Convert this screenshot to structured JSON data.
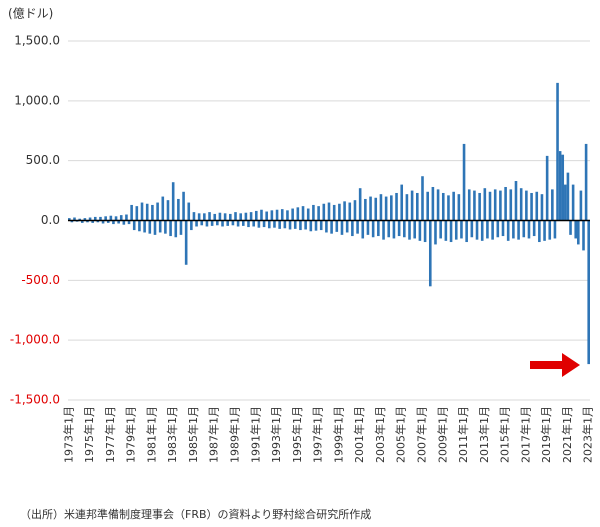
{
  "chart_data": {
    "type": "bar",
    "ylabel": "(億ドル)",
    "source": "（出所）米連邦準備制度理事会（FRB）の資料より野村総合研究所作成",
    "color": "#2e75b6",
    "tick_color": "#333333",
    "negative_tick_color": "#e00000",
    "grid": true,
    "ylim": [
      -1500,
      1500
    ],
    "yticks": [
      {
        "value": -1500,
        "label": "-1,500.0"
      },
      {
        "value": -1000,
        "label": "-1,000.0"
      },
      {
        "value": -500,
        "label": "-500.0"
      },
      {
        "value": 0,
        "label": "0.0"
      },
      {
        "value": 500,
        "label": "500.0"
      },
      {
        "value": 1000,
        "label": "1,000.0"
      },
      {
        "value": 1500,
        "label": "1,500.0"
      }
    ],
    "categories": [
      "1973年1月",
      null,
      null,
      null,
      null,
      null,
      null,
      null,
      "1975年1月",
      null,
      null,
      null,
      null,
      null,
      null,
      null,
      "1977年1月",
      null,
      null,
      null,
      null,
      null,
      null,
      null,
      "1979年1月",
      null,
      null,
      null,
      null,
      null,
      null,
      null,
      "1981年1月",
      null,
      null,
      null,
      null,
      null,
      null,
      null,
      "1983年1月",
      null,
      null,
      null,
      null,
      null,
      null,
      null,
      "1985年1月",
      null,
      null,
      null,
      null,
      null,
      null,
      null,
      "1987年1月",
      null,
      null,
      null,
      null,
      null,
      null,
      null,
      "1989年1月",
      null,
      null,
      null,
      null,
      null,
      null,
      null,
      "1991年1月",
      null,
      null,
      null,
      null,
      null,
      null,
      null,
      "1993年1月",
      null,
      null,
      null,
      null,
      null,
      null,
      null,
      "1995年1月",
      null,
      null,
      null,
      null,
      null,
      null,
      null,
      "1997年1月",
      null,
      null,
      null,
      null,
      null,
      null,
      null,
      "1999年1月",
      null,
      null,
      null,
      null,
      null,
      null,
      null,
      "2001年1月",
      null,
      null,
      null,
      null,
      null,
      null,
      null,
      "2003年1月",
      null,
      null,
      null,
      null,
      null,
      null,
      null,
      "2005年1月",
      null,
      null,
      null,
      null,
      null,
      null,
      null,
      "2007年1月",
      null,
      null,
      null,
      null,
      null,
      null,
      null,
      "2009年1月",
      null,
      null,
      null,
      null,
      null,
      null,
      null,
      "2011年1月",
      null,
      null,
      null,
      null,
      null,
      null,
      null,
      "2013年1月",
      null,
      null,
      null,
      null,
      null,
      null,
      null,
      "2015年1月",
      null,
      null,
      null,
      null,
      null,
      null,
      null,
      "2017年1月",
      null,
      null,
      null,
      null,
      null,
      null,
      null,
      "2019年1月",
      null,
      null,
      null,
      null,
      null,
      null,
      null,
      "2021年1月",
      null,
      null,
      null,
      null,
      null,
      null,
      null,
      "2023年1月"
    ],
    "values": [
      20,
      -15,
      25,
      -10,
      15,
      -20,
      20,
      -15,
      25,
      -20,
      30,
      -15,
      30,
      -25,
      35,
      -20,
      40,
      -30,
      35,
      -25,
      45,
      -35,
      50,
      -30,
      130,
      -80,
      120,
      -90,
      150,
      -100,
      140,
      -110,
      130,
      -120,
      150,
      -100,
      200,
      -110,
      170,
      -130,
      320,
      -140,
      180,
      -120,
      240,
      -370,
      150,
      -80,
      70,
      -50,
      60,
      -40,
      60,
      -50,
      70,
      -45,
      55,
      -40,
      65,
      -50,
      60,
      -45,
      55,
      -40,
      70,
      -50,
      60,
      -45,
      65,
      -55,
      70,
      -50,
      80,
      -60,
      90,
      -55,
      75,
      -65,
      85,
      -60,
      90,
      -70,
      95,
      -65,
      85,
      -75,
      100,
      -70,
      110,
      -80,
      120,
      -75,
      100,
      -90,
      130,
      -85,
      120,
      -80,
      140,
      -100,
      150,
      -110,
      130,
      -95,
      140,
      -120,
      160,
      -100,
      150,
      -130,
      170,
      -110,
      270,
      -150,
      180,
      -120,
      200,
      -140,
      190,
      -130,
      220,
      -160,
      200,
      -140,
      210,
      -150,
      230,
      -130,
      300,
      -140,
      220,
      -160,
      250,
      -150,
      230,
      -170,
      370,
      -180,
      240,
      -550,
      280,
      -200,
      260,
      -150,
      230,
      -170,
      210,
      -180,
      240,
      -160,
      220,
      -150,
      640,
      -180,
      260,
      -140,
      250,
      -160,
      230,
      -170,
      270,
      -150,
      240,
      -160,
      260,
      -140,
      250,
      -130,
      280,
      -170,
      260,
      -150,
      330,
      -160,
      270,
      -140,
      250,
      -150,
      230,
      -130,
      240,
      -180,
      220,
      -170,
      540,
      -160,
      260,
      -150,
      1150,
      580,
      550,
      300,
      400,
      -120,
      300,
      -150,
      -200,
      250,
      -250,
      640,
      -1200
    ]
  }
}
